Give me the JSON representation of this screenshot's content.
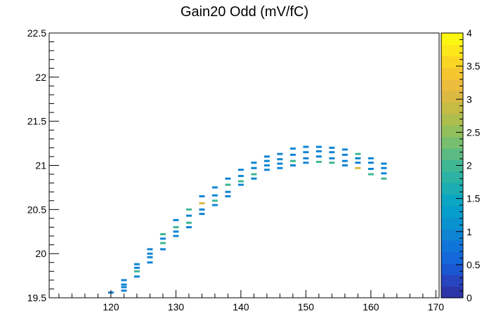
{
  "chart_data": {
    "type": "heatmap",
    "title": "Gain20 Odd (mV/fC)",
    "xlabel": "",
    "ylabel": "",
    "xlim": [
      110.5,
      170.5
    ],
    "ylim": [
      19.5,
      22.5
    ],
    "x_ticks": [
      "120",
      "130",
      "140",
      "150",
      "160",
      "170"
    ],
    "y_ticks": [
      "19.5",
      "20",
      "20.5",
      "21",
      "21.5",
      "22",
      "22.5"
    ],
    "z_range": [
      0,
      4
    ],
    "z_ticks": [
      "0",
      "0.5",
      "1",
      "1.5",
      "2",
      "2.5",
      "3",
      "3.5",
      "4"
    ],
    "z_colors": [
      "#2c35a7",
      "#2745be",
      "#1b57d1",
      "#1468d9",
      "#0f75d9",
      "#0e84d3",
      "#0893cf",
      "#059ecb",
      "#0ba6c2",
      "#1cadb3",
      "#2cb3a4",
      "#40b793",
      "#5cbb82",
      "#77bf6e",
      "#93bf5c",
      "#adbe4f",
      "#c6bb45",
      "#dbb943",
      "#ecbc3d",
      "#f6c631",
      "#fad624",
      "#fbe71a",
      "#fcf613"
    ],
    "bins": [
      {
        "x": 120,
        "y": [
          19.56
        ],
        "z": [
          1
        ]
      },
      {
        "x": 122,
        "y": [
          19.58,
          19.62,
          19.65,
          19.7
        ],
        "z": [
          1,
          1,
          1,
          1
        ]
      },
      {
        "x": 124,
        "y": [
          19.74,
          19.8,
          19.84,
          19.88
        ],
        "z": [
          1,
          2,
          1,
          1
        ]
      },
      {
        "x": 126,
        "y": [
          19.9,
          19.96,
          20.0,
          20.05
        ],
        "z": [
          1,
          1,
          1,
          1
        ]
      },
      {
        "x": 128,
        "y": [
          20.05,
          20.12,
          20.17,
          20.22
        ],
        "z": [
          1,
          2,
          1,
          2
        ]
      },
      {
        "x": 130,
        "y": [
          20.2,
          20.25,
          20.3,
          20.38
        ],
        "z": [
          1,
          1,
          2,
          1
        ]
      },
      {
        "x": 132,
        "y": [
          20.3,
          20.35,
          20.43,
          20.5
        ],
        "z": [
          1,
          2,
          1,
          2
        ]
      },
      {
        "x": 134,
        "y": [
          20.45,
          20.5,
          20.57,
          20.65
        ],
        "z": [
          1,
          1,
          3,
          1
        ]
      },
      {
        "x": 136,
        "y": [
          20.55,
          20.6,
          20.66,
          20.75
        ],
        "z": [
          1,
          2,
          1,
          1
        ]
      },
      {
        "x": 138,
        "y": [
          20.65,
          20.7,
          20.78,
          20.85
        ],
        "z": [
          1,
          1,
          2,
          1
        ]
      },
      {
        "x": 140,
        "y": [
          20.78,
          20.82,
          20.88,
          20.95
        ],
        "z": [
          1,
          2,
          1,
          1
        ]
      },
      {
        "x": 142,
        "y": [
          20.85,
          20.9,
          20.97,
          21.03
        ],
        "z": [
          1,
          2,
          1,
          1
        ]
      },
      {
        "x": 144,
        "y": [
          20.95,
          21.0,
          21.05,
          21.1
        ],
        "z": [
          1,
          1,
          1,
          1
        ]
      },
      {
        "x": 146,
        "y": [
          20.97,
          21.02,
          21.07,
          21.13
        ],
        "z": [
          1,
          1,
          1,
          1
        ]
      },
      {
        "x": 148,
        "y": [
          21.0,
          21.05,
          21.12,
          21.19
        ],
        "z": [
          1,
          2,
          1,
          1
        ]
      },
      {
        "x": 150,
        "y": [
          21.03,
          21.08,
          21.15,
          21.21
        ],
        "z": [
          1,
          1,
          1,
          1
        ]
      },
      {
        "x": 152,
        "y": [
          21.04,
          21.1,
          21.16,
          21.21
        ],
        "z": [
          2,
          1,
          1,
          1
        ]
      },
      {
        "x": 154,
        "y": [
          21.03,
          21.08,
          21.15,
          21.2
        ],
        "z": [
          2,
          1,
          1,
          1
        ]
      },
      {
        "x": 156,
        "y": [
          21.0,
          21.05,
          21.12,
          21.18
        ],
        "z": [
          1,
          1,
          1,
          1
        ]
      },
      {
        "x": 158,
        "y": [
          20.97,
          21.03,
          21.08,
          21.13
        ],
        "z": [
          3,
          1,
          1,
          2
        ]
      },
      {
        "x": 160,
        "y": [
          20.9,
          20.96,
          21.03,
          21.08
        ],
        "z": [
          2,
          1,
          1,
          1
        ]
      },
      {
        "x": 162,
        "y": [
          20.85,
          20.91,
          20.97,
          21.02
        ],
        "z": [
          2,
          1,
          1,
          1
        ]
      }
    ]
  }
}
